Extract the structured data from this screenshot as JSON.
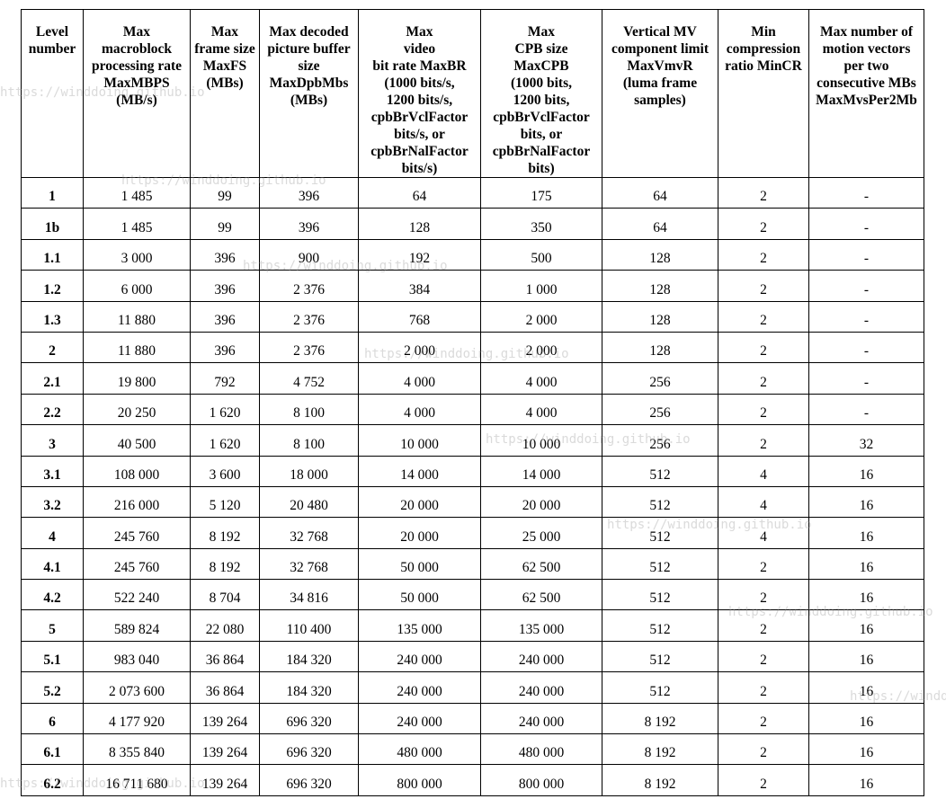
{
  "table": {
    "header": [
      "Level\nnumber",
      "Max\nmacroblock\nprocessing rate\nMaxMBPS\n(MB/s)",
      "Max\nframe size\nMaxFS\n(MBs)",
      "Max decoded\npicture buffer\nsize\nMaxDpbMbs\n(MBs)",
      "Max\nvideo\nbit rate MaxBR\n(1000 bits/s,\n1200 bits/s,\ncpbBrVclFactor\nbits/s, or\ncpbBrNalFactor\nbits/s)",
      "Max\nCPB size\nMaxCPB\n(1000 bits,\n1200 bits,\ncpbBrVclFactor\nbits, or\ncpbBrNalFactor\nbits)",
      "Vertical MV\ncomponent limit\nMaxVmvR\n(luma frame\nsamples)",
      "Min\ncompression\nratio MinCR",
      "Max number of\nmotion vectors\nper two\nconsecutive MBs\nMaxMvsPer2Mb"
    ],
    "rows": [
      [
        "1",
        "1 485",
        "99",
        "396",
        "64",
        "175",
        "64",
        "2",
        "-"
      ],
      [
        "1b",
        "1 485",
        "99",
        "396",
        "128",
        "350",
        "64",
        "2",
        "-"
      ],
      [
        "1.1",
        "3 000",
        "396",
        "900",
        "192",
        "500",
        "128",
        "2",
        "-"
      ],
      [
        "1.2",
        "6 000",
        "396",
        "2 376",
        "384",
        "1 000",
        "128",
        "2",
        "-"
      ],
      [
        "1.3",
        "11 880",
        "396",
        "2 376",
        "768",
        "2 000",
        "128",
        "2",
        "-"
      ],
      [
        "2",
        "11 880",
        "396",
        "2 376",
        "2 000",
        "2 000",
        "128",
        "2",
        "-"
      ],
      [
        "2.1",
        "19 800",
        "792",
        "4 752",
        "4 000",
        "4 000",
        "256",
        "2",
        "-"
      ],
      [
        "2.2",
        "20 250",
        "1 620",
        "8 100",
        "4 000",
        "4 000",
        "256",
        "2",
        "-"
      ],
      [
        "3",
        "40 500",
        "1 620",
        "8 100",
        "10 000",
        "10 000",
        "256",
        "2",
        "32"
      ],
      [
        "3.1",
        "108 000",
        "3 600",
        "18 000",
        "14 000",
        "14 000",
        "512",
        "4",
        "16"
      ],
      [
        "3.2",
        "216 000",
        "5 120",
        "20 480",
        "20 000",
        "20 000",
        "512",
        "4",
        "16"
      ],
      [
        "4",
        "245 760",
        "8 192",
        "32 768",
        "20 000",
        "25 000",
        "512",
        "4",
        "16"
      ],
      [
        "4.1",
        "245 760",
        "8 192",
        "32 768",
        "50 000",
        "62 500",
        "512",
        "2",
        "16"
      ],
      [
        "4.2",
        "522 240",
        "8 704",
        "34 816",
        "50 000",
        "62 500",
        "512",
        "2",
        "16"
      ],
      [
        "5",
        "589 824",
        "22 080",
        "110 400",
        "135 000",
        "135 000",
        "512",
        "2",
        "16"
      ],
      [
        "5.1",
        "983 040",
        "36 864",
        "184 320",
        "240 000",
        "240 000",
        "512",
        "2",
        "16"
      ],
      [
        "5.2",
        "2 073 600",
        "36 864",
        "184 320",
        "240 000",
        "240 000",
        "512",
        "2",
        "16"
      ],
      [
        "6",
        "4 177 920",
        "139 264",
        "696 320",
        "240 000",
        "240 000",
        "8 192",
        "2",
        "16"
      ],
      [
        "6.1",
        "8 355 840",
        "139 264",
        "696 320",
        "480 000",
        "480 000",
        "8 192",
        "2",
        "16"
      ],
      [
        "6.2",
        "16 711 680",
        "139 264",
        "696 320",
        "800 000",
        "800 000",
        "8 192",
        "2",
        "16"
      ]
    ]
  },
  "watermark": "https://winddoing.github.io"
}
